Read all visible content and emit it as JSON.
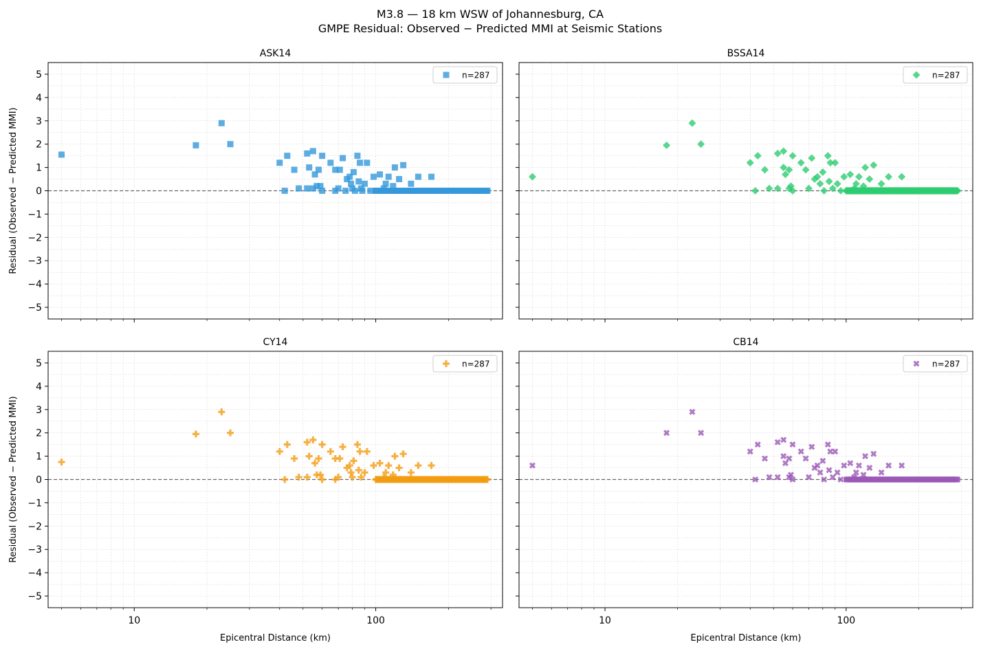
{
  "figure": {
    "title_line1": "M3.8 — 18 km WSW of Johannesburg, CA",
    "title_line2": "GMPE Residual: Observed − Predicted MMI at Seismic Stations"
  },
  "shared_axes": {
    "xlabel": "Epicentral Distance (km)",
    "ylabel": "Residual (Observed − Predicted MMI)",
    "xscale": "log",
    "xlim": [
      4.4,
      335
    ],
    "ylim": [
      -5.5,
      5.5
    ],
    "yticks": [
      5,
      4,
      3,
      2,
      1,
      0,
      -1,
      -2,
      -3,
      -4,
      -5
    ],
    "ytick_labels": [
      "5",
      "4",
      "3",
      "2",
      "1",
      "0",
      "−1",
      "−2",
      "−3",
      "−4",
      "−5"
    ],
    "xticks": [
      10,
      100
    ],
    "xtick_labels": [
      "10",
      "100"
    ],
    "grid": true,
    "zero_reference_line": true
  },
  "chart_data": [
    {
      "type": "scatter",
      "title": "ASK14",
      "color": "#3498db",
      "marker": "square",
      "legend": "n=287",
      "legend_position": "top-right",
      "points": [
        [
          5,
          1.55
        ],
        [
          18,
          1.95
        ],
        [
          23,
          2.9
        ],
        [
          25,
          2.0
        ],
        [
          40,
          1.2
        ],
        [
          42,
          0.0
        ],
        [
          43,
          1.5
        ],
        [
          46,
          0.9
        ],
        [
          48,
          0.1
        ],
        [
          52,
          1.6
        ],
        [
          52,
          0.1
        ],
        [
          53,
          1.0
        ],
        [
          55,
          0.1
        ],
        [
          55,
          1.7
        ],
        [
          56,
          0.7
        ],
        [
          57,
          0.2
        ],
        [
          58,
          0.9
        ],
        [
          59,
          0.2
        ],
        [
          60,
          1.5
        ],
        [
          60,
          0.0
        ],
        [
          65,
          1.2
        ],
        [
          68,
          0.9
        ],
        [
          68,
          0.0
        ],
        [
          70,
          0.1
        ],
        [
          71,
          0.9
        ],
        [
          73,
          1.4
        ],
        [
          75,
          0.0
        ],
        [
          76,
          0.5
        ],
        [
          78,
          0.6
        ],
        [
          79,
          0.3
        ],
        [
          80,
          0.1
        ],
        [
          81,
          0.8
        ],
        [
          82,
          0.0
        ],
        [
          84,
          1.5
        ],
        [
          85,
          0.4
        ],
        [
          86,
          1.2
        ],
        [
          87,
          0.1
        ],
        [
          88,
          0.0
        ],
        [
          90,
          0.3
        ],
        [
          92,
          1.2
        ],
        [
          95,
          0.0
        ],
        [
          98,
          0.6
        ],
        [
          100,
          0.0
        ],
        [
          104,
          0.7
        ],
        [
          108,
          0.1
        ],
        [
          110,
          0.3
        ],
        [
          113,
          0.6
        ],
        [
          115,
          0.0
        ],
        [
          118,
          0.2
        ],
        [
          120,
          1.0
        ],
        [
          125,
          0.5
        ],
        [
          130,
          1.1
        ],
        [
          140,
          0.3
        ],
        [
          150,
          0.6
        ],
        [
          170,
          0.6
        ]
      ],
      "zero_cluster_range": [
        100,
        290
      ]
    },
    {
      "type": "scatter",
      "title": "BSSA14",
      "color": "#2ecc71",
      "marker": "diamond",
      "legend": "n=287",
      "legend_position": "top-right",
      "points": [
        [
          5,
          0.6
        ],
        [
          18,
          1.95
        ],
        [
          23,
          2.9
        ],
        [
          25,
          2.0
        ],
        [
          40,
          1.2
        ],
        [
          42,
          0.0
        ],
        [
          43,
          1.5
        ],
        [
          46,
          0.9
        ],
        [
          48,
          0.1
        ],
        [
          52,
          1.6
        ],
        [
          52,
          0.1
        ],
        [
          55,
          1.7
        ],
        [
          55,
          1.0
        ],
        [
          56,
          0.7
        ],
        [
          58,
          0.9
        ],
        [
          58,
          0.1
        ],
        [
          59,
          0.2
        ],
        [
          60,
          1.5
        ],
        [
          60,
          0.0
        ],
        [
          65,
          1.2
        ],
        [
          68,
          0.9
        ],
        [
          70,
          0.1
        ],
        [
          72,
          1.4
        ],
        [
          74,
          0.5
        ],
        [
          76,
          0.6
        ],
        [
          78,
          0.3
        ],
        [
          80,
          0.8
        ],
        [
          81,
          0.0
        ],
        [
          84,
          1.5
        ],
        [
          85,
          0.4
        ],
        [
          86,
          1.2
        ],
        [
          88,
          0.1
        ],
        [
          90,
          1.2
        ],
        [
          92,
          0.3
        ],
        [
          95,
          0.0
        ],
        [
          98,
          0.6
        ],
        [
          104,
          0.7
        ],
        [
          108,
          0.1
        ],
        [
          110,
          0.3
        ],
        [
          113,
          0.6
        ],
        [
          118,
          0.2
        ],
        [
          120,
          1.0
        ],
        [
          125,
          0.5
        ],
        [
          130,
          1.1
        ],
        [
          140,
          0.3
        ],
        [
          150,
          0.6
        ],
        [
          170,
          0.6
        ]
      ],
      "zero_cluster_range": [
        100,
        290
      ]
    },
    {
      "type": "scatter",
      "title": "CY14",
      "color": "#f39c12",
      "marker": "plus",
      "legend": "n=287",
      "legend_position": "top-right",
      "points": [
        [
          5,
          0.75
        ],
        [
          18,
          1.95
        ],
        [
          23,
          2.9
        ],
        [
          25,
          2.0
        ],
        [
          40,
          1.2
        ],
        [
          42,
          0.0
        ],
        [
          43,
          1.5
        ],
        [
          46,
          0.9
        ],
        [
          48,
          0.1
        ],
        [
          52,
          1.6
        ],
        [
          52,
          0.1
        ],
        [
          53,
          1.0
        ],
        [
          55,
          1.7
        ],
        [
          56,
          0.7
        ],
        [
          57,
          0.2
        ],
        [
          58,
          0.9
        ],
        [
          59,
          0.2
        ],
        [
          60,
          1.5
        ],
        [
          60,
          0.0
        ],
        [
          65,
          1.2
        ],
        [
          68,
          0.9
        ],
        [
          68,
          0.0
        ],
        [
          70,
          0.1
        ],
        [
          71,
          0.9
        ],
        [
          73,
          1.4
        ],
        [
          76,
          0.5
        ],
        [
          78,
          0.6
        ],
        [
          79,
          0.3
        ],
        [
          80,
          0.1
        ],
        [
          81,
          0.8
        ],
        [
          84,
          1.5
        ],
        [
          85,
          0.4
        ],
        [
          86,
          1.2
        ],
        [
          87,
          0.1
        ],
        [
          90,
          0.3
        ],
        [
          92,
          1.2
        ],
        [
          98,
          0.6
        ],
        [
          104,
          0.7
        ],
        [
          108,
          0.1
        ],
        [
          110,
          0.3
        ],
        [
          113,
          0.6
        ],
        [
          118,
          0.2
        ],
        [
          120,
          1.0
        ],
        [
          125,
          0.5
        ],
        [
          130,
          1.1
        ],
        [
          140,
          0.3
        ],
        [
          150,
          0.6
        ],
        [
          170,
          0.6
        ]
      ],
      "zero_cluster_range": [
        100,
        290
      ]
    },
    {
      "type": "scatter",
      "title": "CB14",
      "color": "#9b59b6",
      "marker": "x",
      "legend": "n=287",
      "legend_position": "top-right",
      "points": [
        [
          5,
          0.6
        ],
        [
          18,
          2.0
        ],
        [
          23,
          2.9
        ],
        [
          25,
          2.0
        ],
        [
          40,
          1.2
        ],
        [
          42,
          0.0
        ],
        [
          43,
          1.5
        ],
        [
          46,
          0.9
        ],
        [
          48,
          0.1
        ],
        [
          52,
          1.6
        ],
        [
          52,
          0.1
        ],
        [
          55,
          1.7
        ],
        [
          55,
          1.0
        ],
        [
          56,
          0.7
        ],
        [
          58,
          0.9
        ],
        [
          58,
          0.1
        ],
        [
          59,
          0.2
        ],
        [
          60,
          1.5
        ],
        [
          60,
          0.0
        ],
        [
          65,
          1.2
        ],
        [
          68,
          0.9
        ],
        [
          70,
          0.1
        ],
        [
          72,
          1.4
        ],
        [
          74,
          0.5
        ],
        [
          76,
          0.6
        ],
        [
          78,
          0.3
        ],
        [
          80,
          0.8
        ],
        [
          81,
          0.0
        ],
        [
          84,
          1.5
        ],
        [
          85,
          0.4
        ],
        [
          86,
          1.2
        ],
        [
          88,
          0.1
        ],
        [
          90,
          1.2
        ],
        [
          92,
          0.3
        ],
        [
          95,
          0.0
        ],
        [
          98,
          0.6
        ],
        [
          104,
          0.7
        ],
        [
          108,
          0.1
        ],
        [
          110,
          0.3
        ],
        [
          113,
          0.6
        ],
        [
          118,
          0.2
        ],
        [
          120,
          1.0
        ],
        [
          125,
          0.5
        ],
        [
          130,
          1.1
        ],
        [
          140,
          0.3
        ],
        [
          150,
          0.6
        ],
        [
          170,
          0.6
        ]
      ],
      "zero_cluster_range": [
        100,
        290
      ]
    }
  ]
}
